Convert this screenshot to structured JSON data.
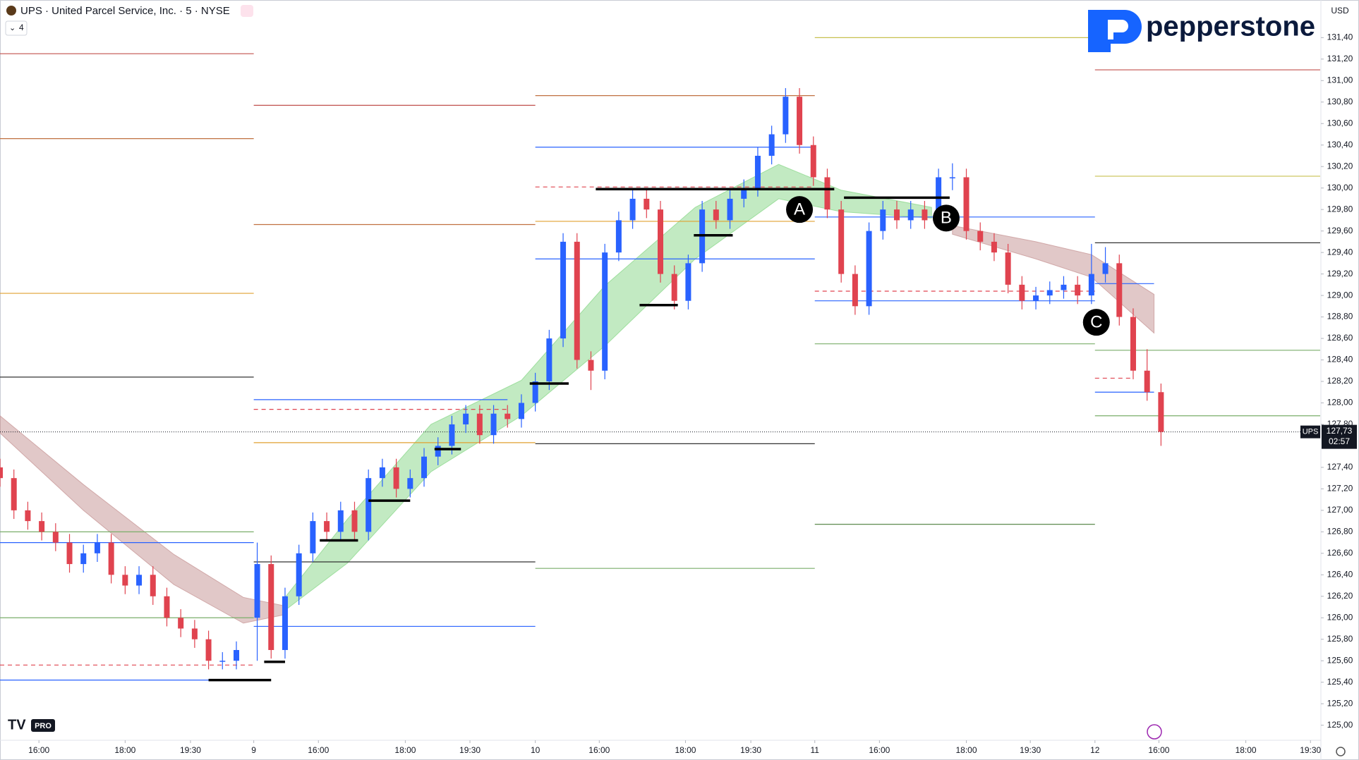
{
  "chart_data": {
    "type": "candlestick",
    "title": "UPS · United Parcel Service, Inc. · 5 · NYSE",
    "indicator_count": "4",
    "currency": "USD",
    "brand": "pepperstone",
    "badge": "PRO",
    "symbol": "UPS",
    "last_price": {
      "value": 127.73,
      "label": "127,73"
    },
    "countdown": "02:57",
    "up_color": "#2962ff",
    "down_color": "#e0434f",
    "xlim": [
      0,
      190
    ],
    "ylim": [
      124.86,
      131.75
    ],
    "xticks": [
      {
        "value": 5.6,
        "label": "16:00"
      },
      {
        "value": 18,
        "label": "18:00"
      },
      {
        "value": 27.4,
        "label": "19:30"
      },
      {
        "value": 36.5,
        "label": "9"
      },
      {
        "value": 45.8,
        "label": "16:00"
      },
      {
        "value": 58.3,
        "label": "18:00"
      },
      {
        "value": 67.6,
        "label": "19:30"
      },
      {
        "value": 77,
        "label": "10"
      },
      {
        "value": 86.2,
        "label": "16:00"
      },
      {
        "value": 98.6,
        "label": "18:00"
      },
      {
        "value": 108,
        "label": "19:30"
      },
      {
        "value": 117.2,
        "label": "11"
      },
      {
        "value": 126.5,
        "label": "16:00"
      },
      {
        "value": 139,
        "label": "18:00"
      },
      {
        "value": 148.2,
        "label": "19:30"
      },
      {
        "value": 157.5,
        "label": "12"
      },
      {
        "value": 166.7,
        "label": "16:00"
      },
      {
        "value": 179.2,
        "label": "18:00"
      },
      {
        "value": 188.5,
        "label": "19:30"
      }
    ],
    "yticks": [
      {
        "value": 125.0,
        "label": "125,00"
      },
      {
        "value": 125.2,
        "label": "125,20"
      },
      {
        "value": 125.4,
        "label": "125,40"
      },
      {
        "value": 125.6,
        "label": "125,60"
      },
      {
        "value": 125.8,
        "label": "125,80"
      },
      {
        "value": 126.0,
        "label": "126,00"
      },
      {
        "value": 126.2,
        "label": "126,20"
      },
      {
        "value": 126.4,
        "label": "126,40"
      },
      {
        "value": 126.6,
        "label": "126,60"
      },
      {
        "value": 126.8,
        "label": "126,80"
      },
      {
        "value": 127.0,
        "label": "127,00"
      },
      {
        "value": 127.2,
        "label": "127,20"
      },
      {
        "value": 127.4,
        "label": "127,40"
      },
      {
        "value": 127.8,
        "label": "127,80"
      },
      {
        "value": 128.0,
        "label": "128,00"
      },
      {
        "value": 128.2,
        "label": "128,20"
      },
      {
        "value": 128.4,
        "label": "128,40"
      },
      {
        "value": 128.6,
        "label": "128,60"
      },
      {
        "value": 128.8,
        "label": "128,80"
      },
      {
        "value": 129.0,
        "label": "129,00"
      },
      {
        "value": 129.2,
        "label": "129,20"
      },
      {
        "value": 129.4,
        "label": "129,40"
      },
      {
        "value": 129.6,
        "label": "129,60"
      },
      {
        "value": 129.8,
        "label": "129,80"
      },
      {
        "value": 130.0,
        "label": "130,00"
      },
      {
        "value": 130.2,
        "label": "130,20"
      },
      {
        "value": 130.4,
        "label": "130,40"
      },
      {
        "value": 130.6,
        "label": "130,60"
      },
      {
        "value": 130.8,
        "label": "130,80"
      },
      {
        "value": 131.0,
        "label": "131,00"
      },
      {
        "value": 131.2,
        "label": "131,20"
      },
      {
        "value": 131.4,
        "label": "131,40"
      }
    ],
    "candles": [
      [
        0,
        127.4,
        127.48,
        127.22,
        127.3
      ],
      [
        2,
        127.3,
        127.38,
        126.92,
        127.0
      ],
      [
        4,
        127.0,
        127.08,
        126.82,
        126.9
      ],
      [
        6,
        126.9,
        126.98,
        126.72,
        126.8
      ],
      [
        8,
        126.8,
        126.88,
        126.62,
        126.7
      ],
      [
        10,
        126.7,
        126.78,
        126.42,
        126.5
      ],
      [
        12,
        126.5,
        126.68,
        126.42,
        126.6
      ],
      [
        14,
        126.6,
        126.78,
        126.52,
        126.7
      ],
      [
        16,
        126.7,
        126.78,
        126.32,
        126.4
      ],
      [
        18,
        126.4,
        126.48,
        126.22,
        126.3
      ],
      [
        20,
        126.3,
        126.48,
        126.22,
        126.4
      ],
      [
        22,
        126.4,
        126.48,
        126.12,
        126.2
      ],
      [
        24,
        126.2,
        126.28,
        125.92,
        126.0
      ],
      [
        26,
        126.0,
        126.08,
        125.82,
        125.9
      ],
      [
        28,
        125.9,
        125.98,
        125.72,
        125.8
      ],
      [
        30,
        125.8,
        125.88,
        125.52,
        125.6
      ],
      [
        32,
        125.6,
        125.68,
        125.52,
        125.6
      ],
      [
        34,
        125.6,
        125.78,
        125.52,
        125.7
      ],
      [
        37,
        126.0,
        126.7,
        125.6,
        126.5
      ],
      [
        39,
        126.5,
        126.58,
        125.62,
        125.7
      ],
      [
        41,
        125.7,
        126.28,
        125.62,
        126.2
      ],
      [
        43,
        126.2,
        126.68,
        126.12,
        126.6
      ],
      [
        45,
        126.6,
        126.98,
        126.52,
        126.9
      ],
      [
        47,
        126.9,
        126.98,
        126.72,
        126.8
      ],
      [
        49,
        126.8,
        127.08,
        126.72,
        127.0
      ],
      [
        51,
        127.0,
        127.08,
        126.72,
        126.8
      ],
      [
        53,
        126.8,
        127.38,
        126.72,
        127.3
      ],
      [
        55,
        127.3,
        127.48,
        127.22,
        127.4
      ],
      [
        57,
        127.4,
        127.48,
        127.12,
        127.2
      ],
      [
        59,
        127.2,
        127.38,
        127.12,
        127.3
      ],
      [
        61,
        127.3,
        127.58,
        127.22,
        127.5
      ],
      [
        63,
        127.5,
        127.68,
        127.42,
        127.6
      ],
      [
        65,
        127.6,
        127.88,
        127.52,
        127.8
      ],
      [
        67,
        127.8,
        127.98,
        127.72,
        127.9
      ],
      [
        69,
        127.9,
        127.98,
        127.62,
        127.7
      ],
      [
        71,
        127.7,
        127.98,
        127.62,
        127.9
      ],
      [
        73,
        127.9,
        127.98,
        127.77,
        127.85
      ],
      [
        75,
        127.85,
        128.08,
        127.77,
        128.0
      ],
      [
        77,
        128.0,
        128.28,
        127.92,
        128.2
      ],
      [
        79,
        128.2,
        128.68,
        128.12,
        128.6
      ],
      [
        81,
        128.6,
        129.58,
        128.52,
        129.5
      ],
      [
        83,
        129.5,
        129.58,
        128.32,
        128.4
      ],
      [
        85,
        128.4,
        128.48,
        128.12,
        128.3
      ],
      [
        87,
        128.3,
        129.48,
        128.22,
        129.4
      ],
      [
        89,
        129.4,
        129.78,
        129.32,
        129.7
      ],
      [
        91,
        129.7,
        129.98,
        129.62,
        129.9
      ],
      [
        93,
        129.9,
        129.98,
        129.72,
        129.8
      ],
      [
        95,
        129.8,
        129.88,
        129.12,
        129.2
      ],
      [
        97,
        129.2,
        129.28,
        128.87,
        128.95
      ],
      [
        99,
        128.95,
        129.38,
        128.87,
        129.3
      ],
      [
        101,
        129.3,
        129.88,
        129.22,
        129.8
      ],
      [
        103,
        129.8,
        129.88,
        129.62,
        129.7
      ],
      [
        105,
        129.7,
        129.98,
        129.62,
        129.9
      ],
      [
        107,
        129.9,
        130.08,
        129.82,
        130.0
      ],
      [
        109,
        130.0,
        130.38,
        129.92,
        130.3
      ],
      [
        111,
        130.3,
        130.58,
        130.22,
        130.5
      ],
      [
        113,
        130.5,
        130.93,
        130.42,
        130.85
      ],
      [
        115,
        130.85,
        130.93,
        130.32,
        130.4
      ],
      [
        117,
        130.4,
        130.48,
        130.02,
        130.1
      ],
      [
        119,
        130.1,
        130.18,
        129.72,
        129.8
      ],
      [
        121,
        129.8,
        129.88,
        129.12,
        129.2
      ],
      [
        123,
        129.2,
        129.28,
        128.82,
        128.9
      ],
      [
        125,
        128.9,
        129.68,
        128.82,
        129.6
      ],
      [
        127,
        129.6,
        129.88,
        129.52,
        129.8
      ],
      [
        129,
        129.8,
        129.88,
        129.62,
        129.7
      ],
      [
        131,
        129.7,
        129.88,
        129.62,
        129.8
      ],
      [
        133,
        129.8,
        129.88,
        129.62,
        129.7
      ],
      [
        135,
        129.7,
        130.18,
        129.62,
        130.1
      ],
      [
        137,
        130.1,
        130.23,
        129.98,
        130.1
      ],
      [
        139,
        130.1,
        130.18,
        129.52,
        129.6
      ],
      [
        141,
        129.6,
        129.68,
        129.42,
        129.5
      ],
      [
        143,
        129.5,
        129.58,
        129.32,
        129.4
      ],
      [
        145,
        129.4,
        129.48,
        129.02,
        129.1
      ],
      [
        147,
        129.1,
        129.18,
        128.87,
        128.95
      ],
      [
        149,
        128.95,
        129.08,
        128.87,
        129.0
      ],
      [
        151,
        129.0,
        129.13,
        128.92,
        129.05
      ],
      [
        153,
        129.05,
        129.18,
        128.97,
        129.1
      ],
      [
        155,
        129.1,
        129.18,
        128.92,
        129.0
      ],
      [
        157,
        129.0,
        129.48,
        128.92,
        129.2
      ],
      [
        159,
        129.2,
        129.45,
        129.12,
        129.3
      ],
      [
        161,
        129.3,
        129.38,
        128.72,
        128.8
      ],
      [
        163,
        128.8,
        128.88,
        128.22,
        128.3
      ],
      [
        165,
        128.3,
        128.5,
        128.02,
        128.1
      ],
      [
        167,
        128.1,
        128.18,
        127.6,
        127.73
      ]
    ],
    "bands": [
      {
        "color": "#8fd98f",
        "x": [
          41,
          50,
          62,
          75,
          87,
          100,
          112,
          121,
          134
        ],
        "upper": [
          126.19,
          126.92,
          127.8,
          128.21,
          129.09,
          129.82,
          130.22,
          129.98,
          129.82
        ],
        "lower": [
          126.07,
          126.51,
          127.36,
          127.88,
          128.53,
          129.34,
          129.9,
          129.78,
          129.72
        ]
      },
      {
        "color": "#c99a9a",
        "x": [
          0,
          12,
          25,
          35,
          41
        ],
        "upper": [
          127.88,
          127.24,
          126.59,
          126.19,
          126.11
        ],
        "lower": [
          127.72,
          127.0,
          126.31,
          125.95,
          126.03
        ]
      },
      {
        "color": "#c99a9a",
        "x": [
          137,
          149,
          157,
          166
        ],
        "upper": [
          129.65,
          129.5,
          129.38,
          129.01
        ],
        "lower": [
          129.57,
          129.34,
          129.17,
          128.65
        ]
      }
    ],
    "levels": [
      {
        "value": 131.25,
        "color": "#c0504d",
        "from": 0,
        "to": 36.5
      },
      {
        "value": 130.46,
        "color": "#c07040",
        "from": 0,
        "to": 36.5
      },
      {
        "value": 129.02,
        "color": "#e0a030",
        "from": 0,
        "to": 36.5
      },
      {
        "value": 128.24,
        "color": "#333333",
        "from": 0,
        "to": 36.5
      },
      {
        "value": 126.8,
        "color": "#7aae6a",
        "from": 0,
        "to": 36.5
      },
      {
        "value": 126.7,
        "color": "#2962ff",
        "from": 0,
        "to": 36.5
      },
      {
        "value": 126.0,
        "color": "#7aae6a",
        "from": 0,
        "to": 36.5
      },
      {
        "value": 125.56,
        "color": "#e0434f",
        "from": 0,
        "to": 36.5,
        "dashed": true
      },
      {
        "value": 125.42,
        "color": "#2962ff",
        "from": 0,
        "to": 36.5
      },
      {
        "value": 130.77,
        "color": "#c0504d",
        "from": 36.5,
        "to": 77
      },
      {
        "value": 129.66,
        "color": "#c07040",
        "from": 36.5,
        "to": 77
      },
      {
        "value": 128.03,
        "color": "#2962ff",
        "from": 36.5,
        "to": 73
      },
      {
        "value": 127.94,
        "color": "#e0434f",
        "from": 36.5,
        "to": 73,
        "dashed": true
      },
      {
        "value": 127.63,
        "color": "#e0a030",
        "from": 36.5,
        "to": 77
      },
      {
        "value": 126.52,
        "color": "#333333",
        "from": 36.5,
        "to": 77
      },
      {
        "value": 125.92,
        "color": "#2962ff",
        "from": 36.5,
        "to": 77
      },
      {
        "value": 130.86,
        "color": "#c07040",
        "from": 77,
        "to": 117.2
      },
      {
        "value": 130.38,
        "color": "#2962ff",
        "from": 77,
        "to": 117.2
      },
      {
        "value": 130.01,
        "color": "#e0434f",
        "from": 77,
        "to": 117.2,
        "dashed": true
      },
      {
        "value": 129.69,
        "color": "#e0a030",
        "from": 77,
        "to": 117.2
      },
      {
        "value": 129.34,
        "color": "#2962ff",
        "from": 77,
        "to": 117.2
      },
      {
        "value": 127.62,
        "color": "#333333",
        "from": 77,
        "to": 117.2
      },
      {
        "value": 126.46,
        "color": "#7aae6a",
        "from": 77,
        "to": 117.2
      },
      {
        "value": 131.4,
        "color": "#c8c050",
        "from": 117.2,
        "to": 157.5
      },
      {
        "value": 129.73,
        "color": "#2962ff",
        "from": 117.2,
        "to": 157.5
      },
      {
        "value": 129.04,
        "color": "#e0434f",
        "from": 117.2,
        "to": 157.5,
        "dashed": true
      },
      {
        "value": 128.95,
        "color": "#2962ff",
        "from": 117.2,
        "to": 157.5
      },
      {
        "value": 128.55,
        "color": "#7aae6a",
        "from": 117.2,
        "to": 157.5
      },
      {
        "value": 126.87,
        "color": "#4a7e3a",
        "from": 117.2,
        "to": 157.5
      },
      {
        "value": 131.1,
        "color": "#c0504d",
        "from": 157.5,
        "to": 189.9
      },
      {
        "value": 130.11,
        "color": "#c8c050",
        "from": 157.5,
        "to": 189.9
      },
      {
        "value": 129.49,
        "color": "#333333",
        "from": 157.5,
        "to": 189.9
      },
      {
        "value": 129.11,
        "color": "#2962ff",
        "from": 157.5,
        "to": 166
      },
      {
        "value": 128.49,
        "color": "#7aae6a",
        "from": 157.5,
        "to": 189.9
      },
      {
        "value": 128.23,
        "color": "#e0434f",
        "from": 157.5,
        "to": 163,
        "dashed": true
      },
      {
        "value": 128.1,
        "color": "#2962ff",
        "from": 157.5,
        "to": 166
      },
      {
        "value": 127.88,
        "color": "#7aae6a",
        "from": 157.5,
        "to": 189.9
      }
    ],
    "supports": [
      {
        "value": 125.42,
        "from": 30,
        "to": 39
      },
      {
        "value": 125.59,
        "from": 38,
        "to": 41
      },
      {
        "value": 126.72,
        "from": 46,
        "to": 51.5
      },
      {
        "value": 127.09,
        "from": 53,
        "to": 59
      },
      {
        "value": 127.57,
        "from": 62.5,
        "to": 66.3
      },
      {
        "value": 128.18,
        "from": 76.2,
        "to": 81.8
      },
      {
        "value": 128.91,
        "from": 92,
        "to": 97.5
      },
      {
        "value": 129.56,
        "from": 99.8,
        "to": 105.4
      },
      {
        "value": 129.99,
        "from": 85.7,
        "to": 120
      },
      {
        "value": 129.91,
        "from": 121.4,
        "to": 136.6
      }
    ],
    "annotations": [
      {
        "label": "A",
        "x": 115,
        "y": 129.8
      },
      {
        "label": "B",
        "x": 136.1,
        "y": 129.72
      },
      {
        "label": "C",
        "x": 157.7,
        "y": 128.75
      }
    ]
  }
}
